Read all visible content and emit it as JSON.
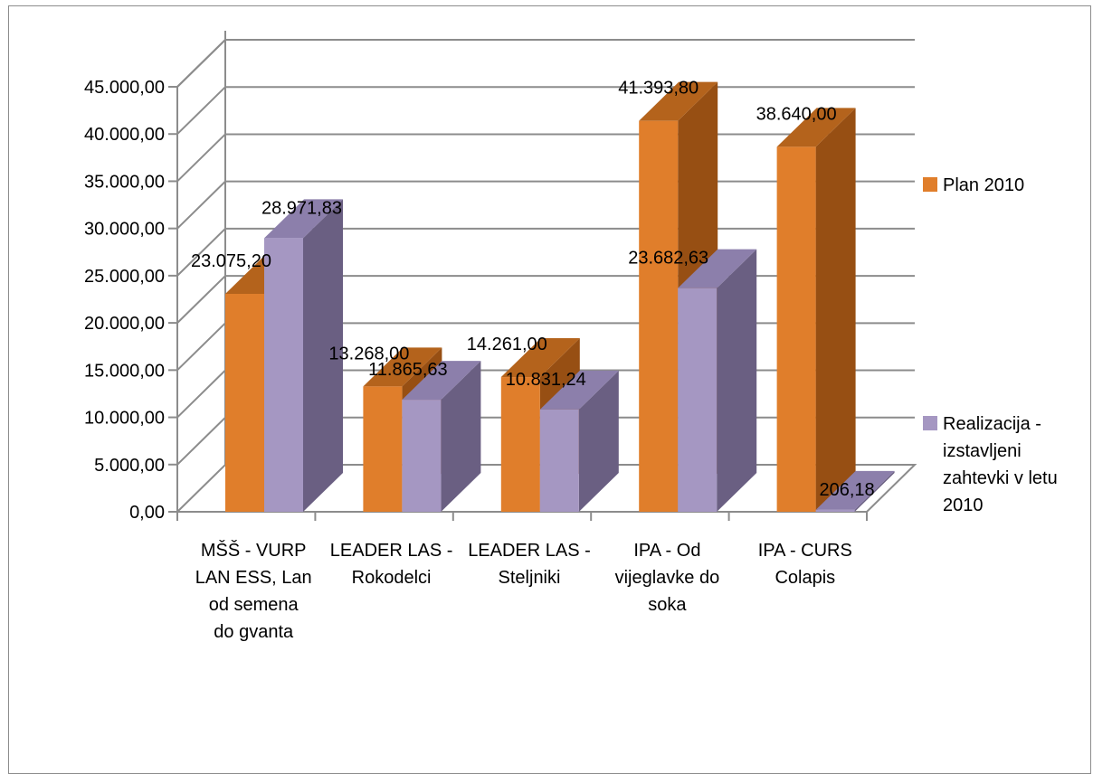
{
  "chart_data": {
    "type": "bar",
    "categories": [
      [
        "MŠŠ - VURP",
        "LAN ESS, Lan",
        "od semena",
        "do gvanta"
      ],
      [
        "LEADER LAS -",
        "Rokodelci"
      ],
      [
        "LEADER LAS -",
        "Steljniki"
      ],
      [
        "IPA - Od",
        "vijeglavke do",
        "soka"
      ],
      [
        "IPA - CURS",
        "Colapis"
      ]
    ],
    "series": [
      {
        "name": "Plan 2010",
        "values": [
          23075.2,
          13268.0,
          14261.0,
          41393.8,
          38640.0
        ],
        "labels": [
          "23.075,20",
          "13.268,00",
          "14.261,00",
          "41.393,80",
          "38.640,00"
        ]
      },
      {
        "name": "Realizacija - izstavljeni zahtevki v letu 2010",
        "values": [
          28971.83,
          11865.63,
          10831.24,
          23682.63,
          206.18
        ],
        "labels": [
          "28.971,83",
          "11.865,63",
          "10.831,24",
          "23.682,63",
          "206,18"
        ]
      }
    ],
    "ylim": [
      0,
      45000
    ],
    "y_ticks": [
      "0,00",
      "5.000,00",
      "10.000,00",
      "15.000,00",
      "20.000,00",
      "25.000,00",
      "30.000,00",
      "35.000,00",
      "40.000,00",
      "45.000,00"
    ],
    "grid": true,
    "three_d": true,
    "legend_position": "right",
    "legend": [
      {
        "lines": [
          "Plan 2010"
        ]
      },
      {
        "lines": [
          "Realizacija -",
          "izstavljeni",
          "zahtevki v letu",
          "2010"
        ]
      }
    ],
    "colors": {
      "plan_front": "#e07e2b",
      "plan_side": "#974f13",
      "plan_top": "#b4631c",
      "real_front": "#a597c2",
      "real_side": "#6a5f82",
      "real_top": "#8c7fab",
      "grid": "#8c8c8c"
    }
  }
}
